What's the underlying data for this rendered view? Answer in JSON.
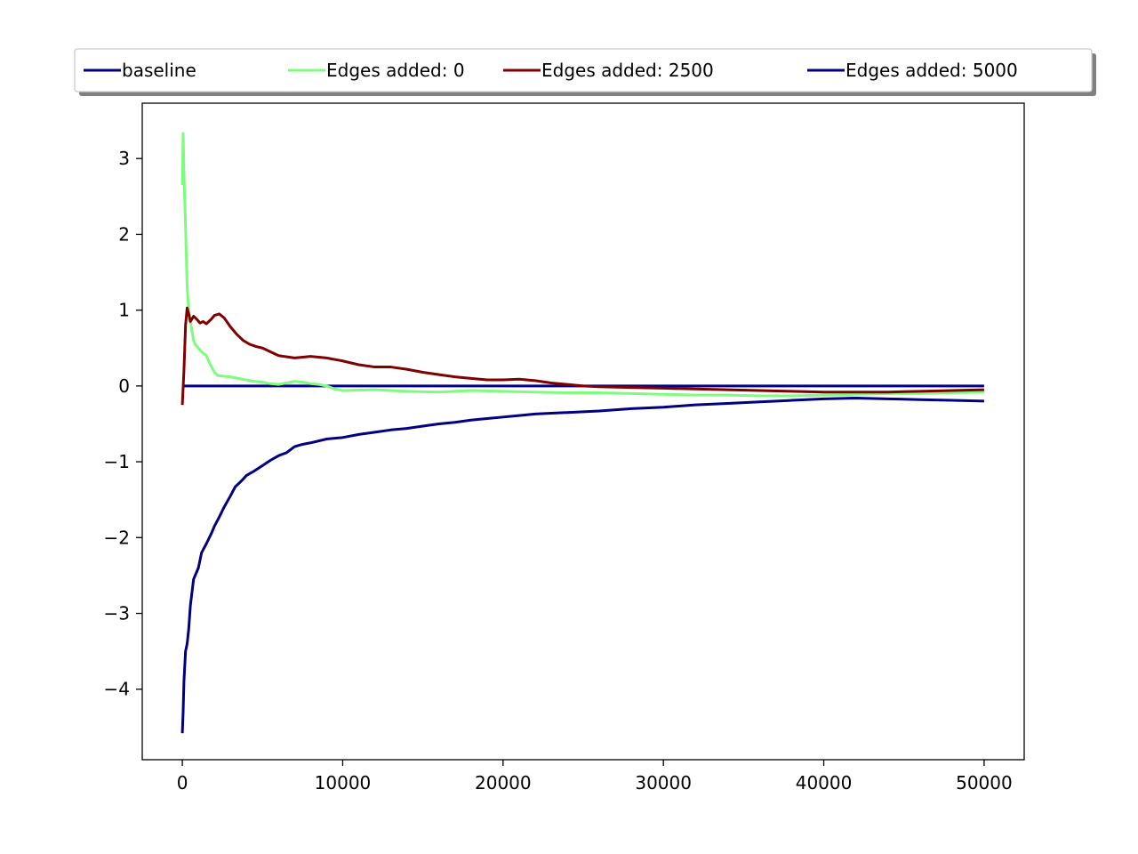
{
  "chart_data": {
    "type": "line",
    "title": "",
    "xlabel": "",
    "ylabel": "",
    "xlim": [
      -2500,
      52500
    ],
    "ylim": [
      -4.93,
      3.73
    ],
    "xticks": [
      0,
      10000,
      20000,
      30000,
      40000,
      50000
    ],
    "xtick_labels": [
      "0",
      "10000",
      "20000",
      "30000",
      "40000",
      "50000"
    ],
    "yticks": [
      3,
      2,
      1,
      0,
      -1,
      -2,
      -3,
      -4
    ],
    "ytick_labels": [
      "3",
      "2",
      "1",
      "0",
      "−1",
      "−2",
      "−3",
      "−4"
    ],
    "grid": false,
    "legend": {
      "placement": "top-center",
      "columns": 4,
      "shadow": true
    },
    "series": [
      {
        "name": "baseline",
        "color": "#000080",
        "x": [
          0,
          50000
        ],
        "y": [
          0,
          0
        ]
      },
      {
        "name": "Edges added: 0",
        "color": "#7dfc7d",
        "x": [
          0,
          50,
          100,
          200,
          300,
          400,
          500,
          700,
          800,
          1000,
          1200,
          1500,
          1700,
          2000,
          2200,
          2500,
          3000,
          3500,
          4000,
          4500,
          5000,
          5500,
          6000,
          6500,
          7000,
          7500,
          8000,
          8500,
          9000,
          9500,
          10000,
          12000,
          14000,
          16000,
          18000,
          20000,
          22000,
          24000,
          26000,
          28000,
          30000,
          32000,
          34000,
          36000,
          38000,
          40000,
          42000,
          44000,
          46000,
          48000,
          50000
        ],
        "y": [
          2.65,
          3.33,
          2.8,
          2.1,
          1.3,
          1.0,
          0.85,
          0.6,
          0.55,
          0.5,
          0.45,
          0.4,
          0.3,
          0.18,
          0.14,
          0.13,
          0.12,
          0.1,
          0.08,
          0.06,
          0.05,
          0.03,
          0.02,
          0.04,
          0.06,
          0.05,
          0.03,
          0.02,
          0.0,
          -0.04,
          -0.06,
          -0.05,
          -0.07,
          -0.08,
          -0.06,
          -0.07,
          -0.08,
          -0.09,
          -0.09,
          -0.1,
          -0.11,
          -0.12,
          -0.12,
          -0.13,
          -0.13,
          -0.12,
          -0.11,
          -0.1,
          -0.1,
          -0.09,
          -0.08
        ]
      },
      {
        "name": "Edges added: 2500",
        "color": "#800000",
        "x": [
          0,
          100,
          200,
          300,
          400,
          500,
          700,
          900,
          1100,
          1300,
          1500,
          1800,
          2000,
          2300,
          2600,
          3000,
          3400,
          3800,
          4200,
          4600,
          5000,
          5500,
          6000,
          7000,
          8000,
          9000,
          10000,
          11000,
          12000,
          13000,
          14000,
          15000,
          16000,
          17000,
          18000,
          19000,
          20000,
          21000,
          22000,
          23000,
          24000,
          25000,
          26000,
          28000,
          30000,
          32000,
          34000,
          36000,
          38000,
          40000,
          42000,
          44000,
          46000,
          48000,
          50000
        ],
        "y": [
          -0.25,
          0.2,
          0.8,
          1.03,
          0.95,
          0.85,
          0.92,
          0.88,
          0.83,
          0.85,
          0.82,
          0.88,
          0.93,
          0.95,
          0.9,
          0.78,
          0.68,
          0.6,
          0.55,
          0.52,
          0.5,
          0.45,
          0.4,
          0.37,
          0.39,
          0.37,
          0.33,
          0.28,
          0.25,
          0.25,
          0.22,
          0.18,
          0.15,
          0.12,
          0.1,
          0.08,
          0.08,
          0.09,
          0.07,
          0.04,
          0.02,
          0.0,
          -0.01,
          -0.02,
          -0.03,
          -0.04,
          -0.05,
          -0.06,
          -0.07,
          -0.08,
          -0.08,
          -0.08,
          -0.07,
          -0.06,
          -0.05
        ]
      },
      {
        "name": "Edges added: 5000",
        "color": "#000080",
        "x": [
          0,
          50,
          100,
          200,
          300,
          400,
          500,
          700,
          1000,
          1200,
          1500,
          1800,
          2000,
          2300,
          2600,
          3000,
          3300,
          3700,
          4000,
          4500,
          5000,
          5500,
          6000,
          6500,
          7000,
          7500,
          8000,
          9000,
          10000,
          11000,
          12000,
          13000,
          14000,
          15000,
          16000,
          17000,
          18000,
          19000,
          20000,
          21000,
          22000,
          24000,
          26000,
          28000,
          30000,
          32000,
          34000,
          36000,
          38000,
          40000,
          42000,
          44000,
          46000,
          48000,
          50000
        ],
        "y": [
          -4.58,
          -4.3,
          -3.9,
          -3.5,
          -3.4,
          -3.2,
          -2.9,
          -2.55,
          -2.4,
          -2.2,
          -2.08,
          -1.95,
          -1.85,
          -1.73,
          -1.6,
          -1.45,
          -1.33,
          -1.25,
          -1.18,
          -1.12,
          -1.05,
          -0.98,
          -0.92,
          -0.88,
          -0.8,
          -0.77,
          -0.75,
          -0.7,
          -0.68,
          -0.64,
          -0.61,
          -0.58,
          -0.56,
          -0.53,
          -0.5,
          -0.48,
          -0.45,
          -0.43,
          -0.41,
          -0.39,
          -0.37,
          -0.35,
          -0.33,
          -0.3,
          -0.28,
          -0.25,
          -0.23,
          -0.21,
          -0.19,
          -0.17,
          -0.16,
          -0.17,
          -0.18,
          -0.19,
          -0.2
        ]
      }
    ]
  }
}
